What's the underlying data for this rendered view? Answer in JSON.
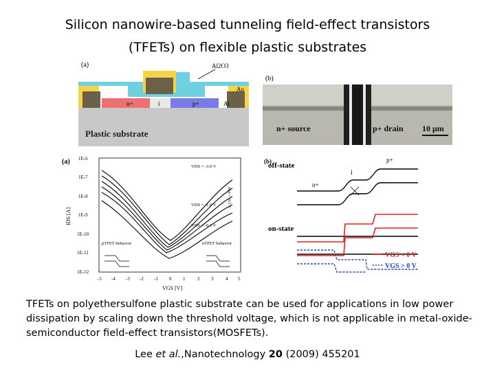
{
  "title": {
    "line1": "Silicon nanowire-based tunneling field-effect transistors",
    "line2": "(TFETs) on flexible plastic substrates"
  },
  "panel_a_top": {
    "label": "(a)",
    "al2o3": "Al2O3",
    "au": "Au",
    "al": "Al",
    "n_plus": "n+",
    "i": "i",
    "p_plus": "p+",
    "substrate": "Plastic substrate",
    "colors": {
      "gate": "#f5d44a",
      "dielectric": "#6fd0e0",
      "metal": "#6b6048",
      "n": "#f07070",
      "p": "#7a7ae8",
      "substrate": "#c8c8c8"
    }
  },
  "panel_b_top": {
    "label": "(b)",
    "source": "n+ source",
    "drain": "p+ drain",
    "scale": "10 μm"
  },
  "panel_a_bottom": {
    "label": "(a)",
    "ylabel": "IDS [A]",
    "xlabel": "VGS [V]",
    "yticks": [
      "1E-6",
      "1E-7",
      "1E-8",
      "1E-9",
      "1E-10",
      "1E-11",
      "1E-12"
    ],
    "xticks": [
      "-5",
      "-4",
      "-3",
      "-2",
      "-1",
      "0",
      "1",
      "2",
      "3",
      "4",
      "5"
    ],
    "vds_top": "VDS = -3.0 V",
    "vds_step": "step = -0.5 V",
    "vds_mid": "VDS = -1.0 V",
    "vds_low": "VDS = -0.1 V",
    "ptfet": "pTFET behavior",
    "ntfet": "nTFET behavior"
  },
  "panel_b_bottom": {
    "label": "(b)",
    "off_state": "off-state",
    "on_state": "on-state",
    "p_plus": "p+",
    "i": "i",
    "n_plus": "n+",
    "legend_red": "VGS < 0 V",
    "legend_blue": "VGS > 0 V",
    "colors": {
      "red": "#e02020",
      "blue": "#2040c0"
    }
  },
  "caption": "TFETs on polyethersulfone plastic substrate can be used for applications in low power dissipation by scaling down the threshold voltage, which is not applicable in metal-oxide-semiconductor field-effect transistors(MOSFETs).",
  "reference": {
    "authors": "Lee ",
    "etal": "et al.",
    "journal": ",Nanotechnology ",
    "volume": "20",
    "rest": " (2009) 455201"
  }
}
